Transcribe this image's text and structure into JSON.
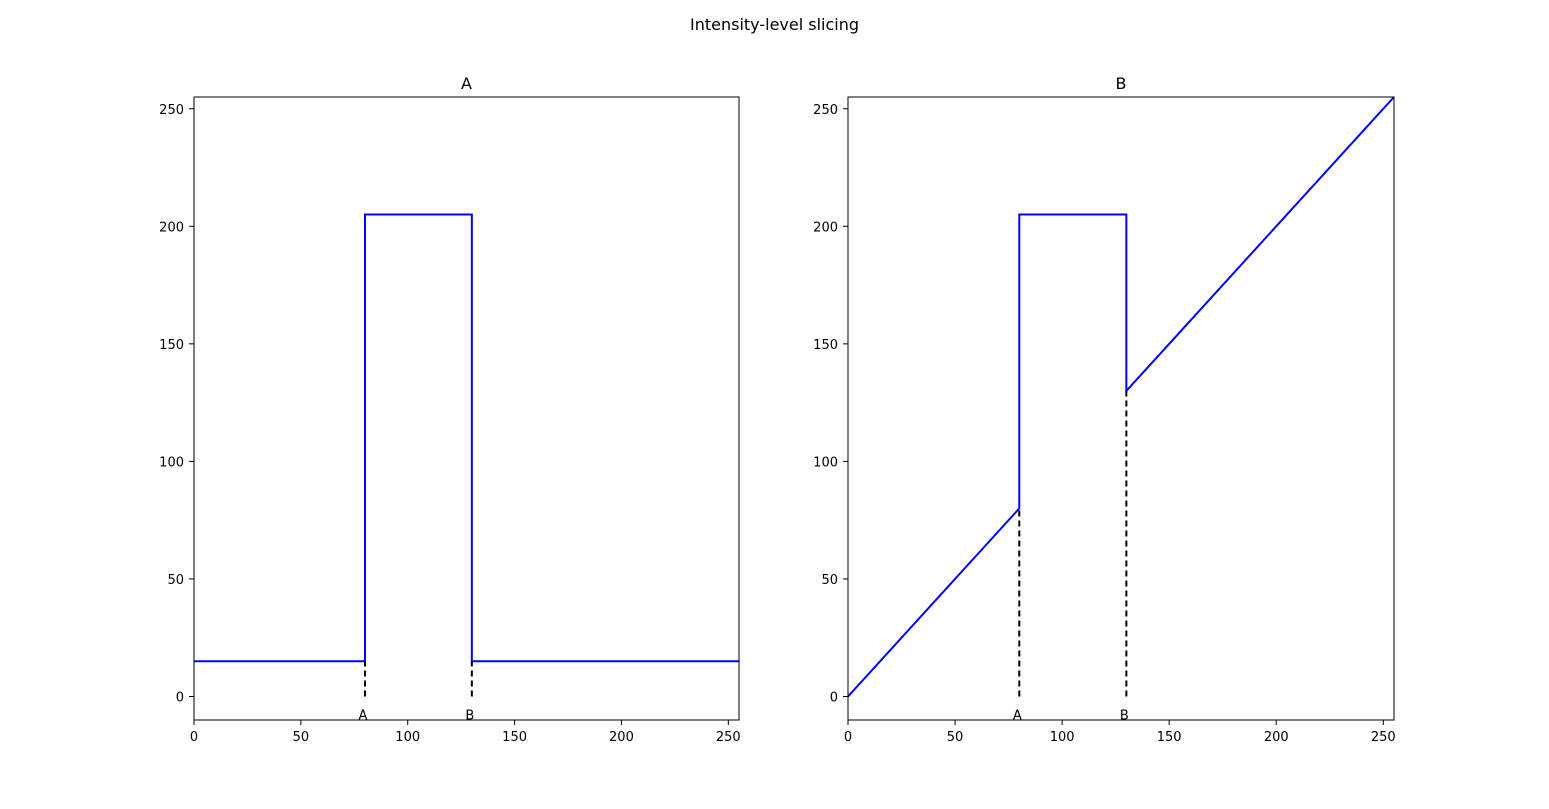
{
  "colors": {
    "line": "#0000ff",
    "guide": "#000000",
    "axes": "#000000",
    "background": "#ffffff"
  },
  "chart_data": {
    "suptitle": "Intensity-level slicing",
    "panels": [
      {
        "title": "A",
        "type": "line",
        "xlim": [
          0,
          255
        ],
        "ylim": [
          -10,
          255
        ],
        "xticks": [
          0,
          50,
          100,
          150,
          200,
          250
        ],
        "yticks": [
          0,
          50,
          100,
          150,
          200,
          250
        ],
        "series": [
          {
            "x": [
              0,
              80,
              80,
              130,
              130,
              255
            ],
            "y": [
              15,
              15,
              205,
              205,
              15,
              15
            ],
            "style": "solid"
          }
        ],
        "guides": [
          {
            "x": 80,
            "y0": 0,
            "y1": 15,
            "label": "A"
          },
          {
            "x": 130,
            "y0": 0,
            "y1": 15,
            "label": "B"
          }
        ]
      },
      {
        "title": "B",
        "type": "line",
        "xlim": [
          0,
          255
        ],
        "ylim": [
          -10,
          255
        ],
        "xticks": [
          0,
          50,
          100,
          150,
          200,
          250
        ],
        "yticks": [
          0,
          50,
          100,
          150,
          200,
          250
        ],
        "series": [
          {
            "x": [
              0,
              80,
              80,
              130,
              130,
              255
            ],
            "y": [
              0,
              80,
              205,
              205,
              130,
              255
            ],
            "style": "solid"
          }
        ],
        "guides": [
          {
            "x": 80,
            "y0": 0,
            "y1": 80,
            "label": "A"
          },
          {
            "x": 130,
            "y0": 0,
            "y1": 130,
            "label": "B"
          }
        ]
      }
    ]
  }
}
